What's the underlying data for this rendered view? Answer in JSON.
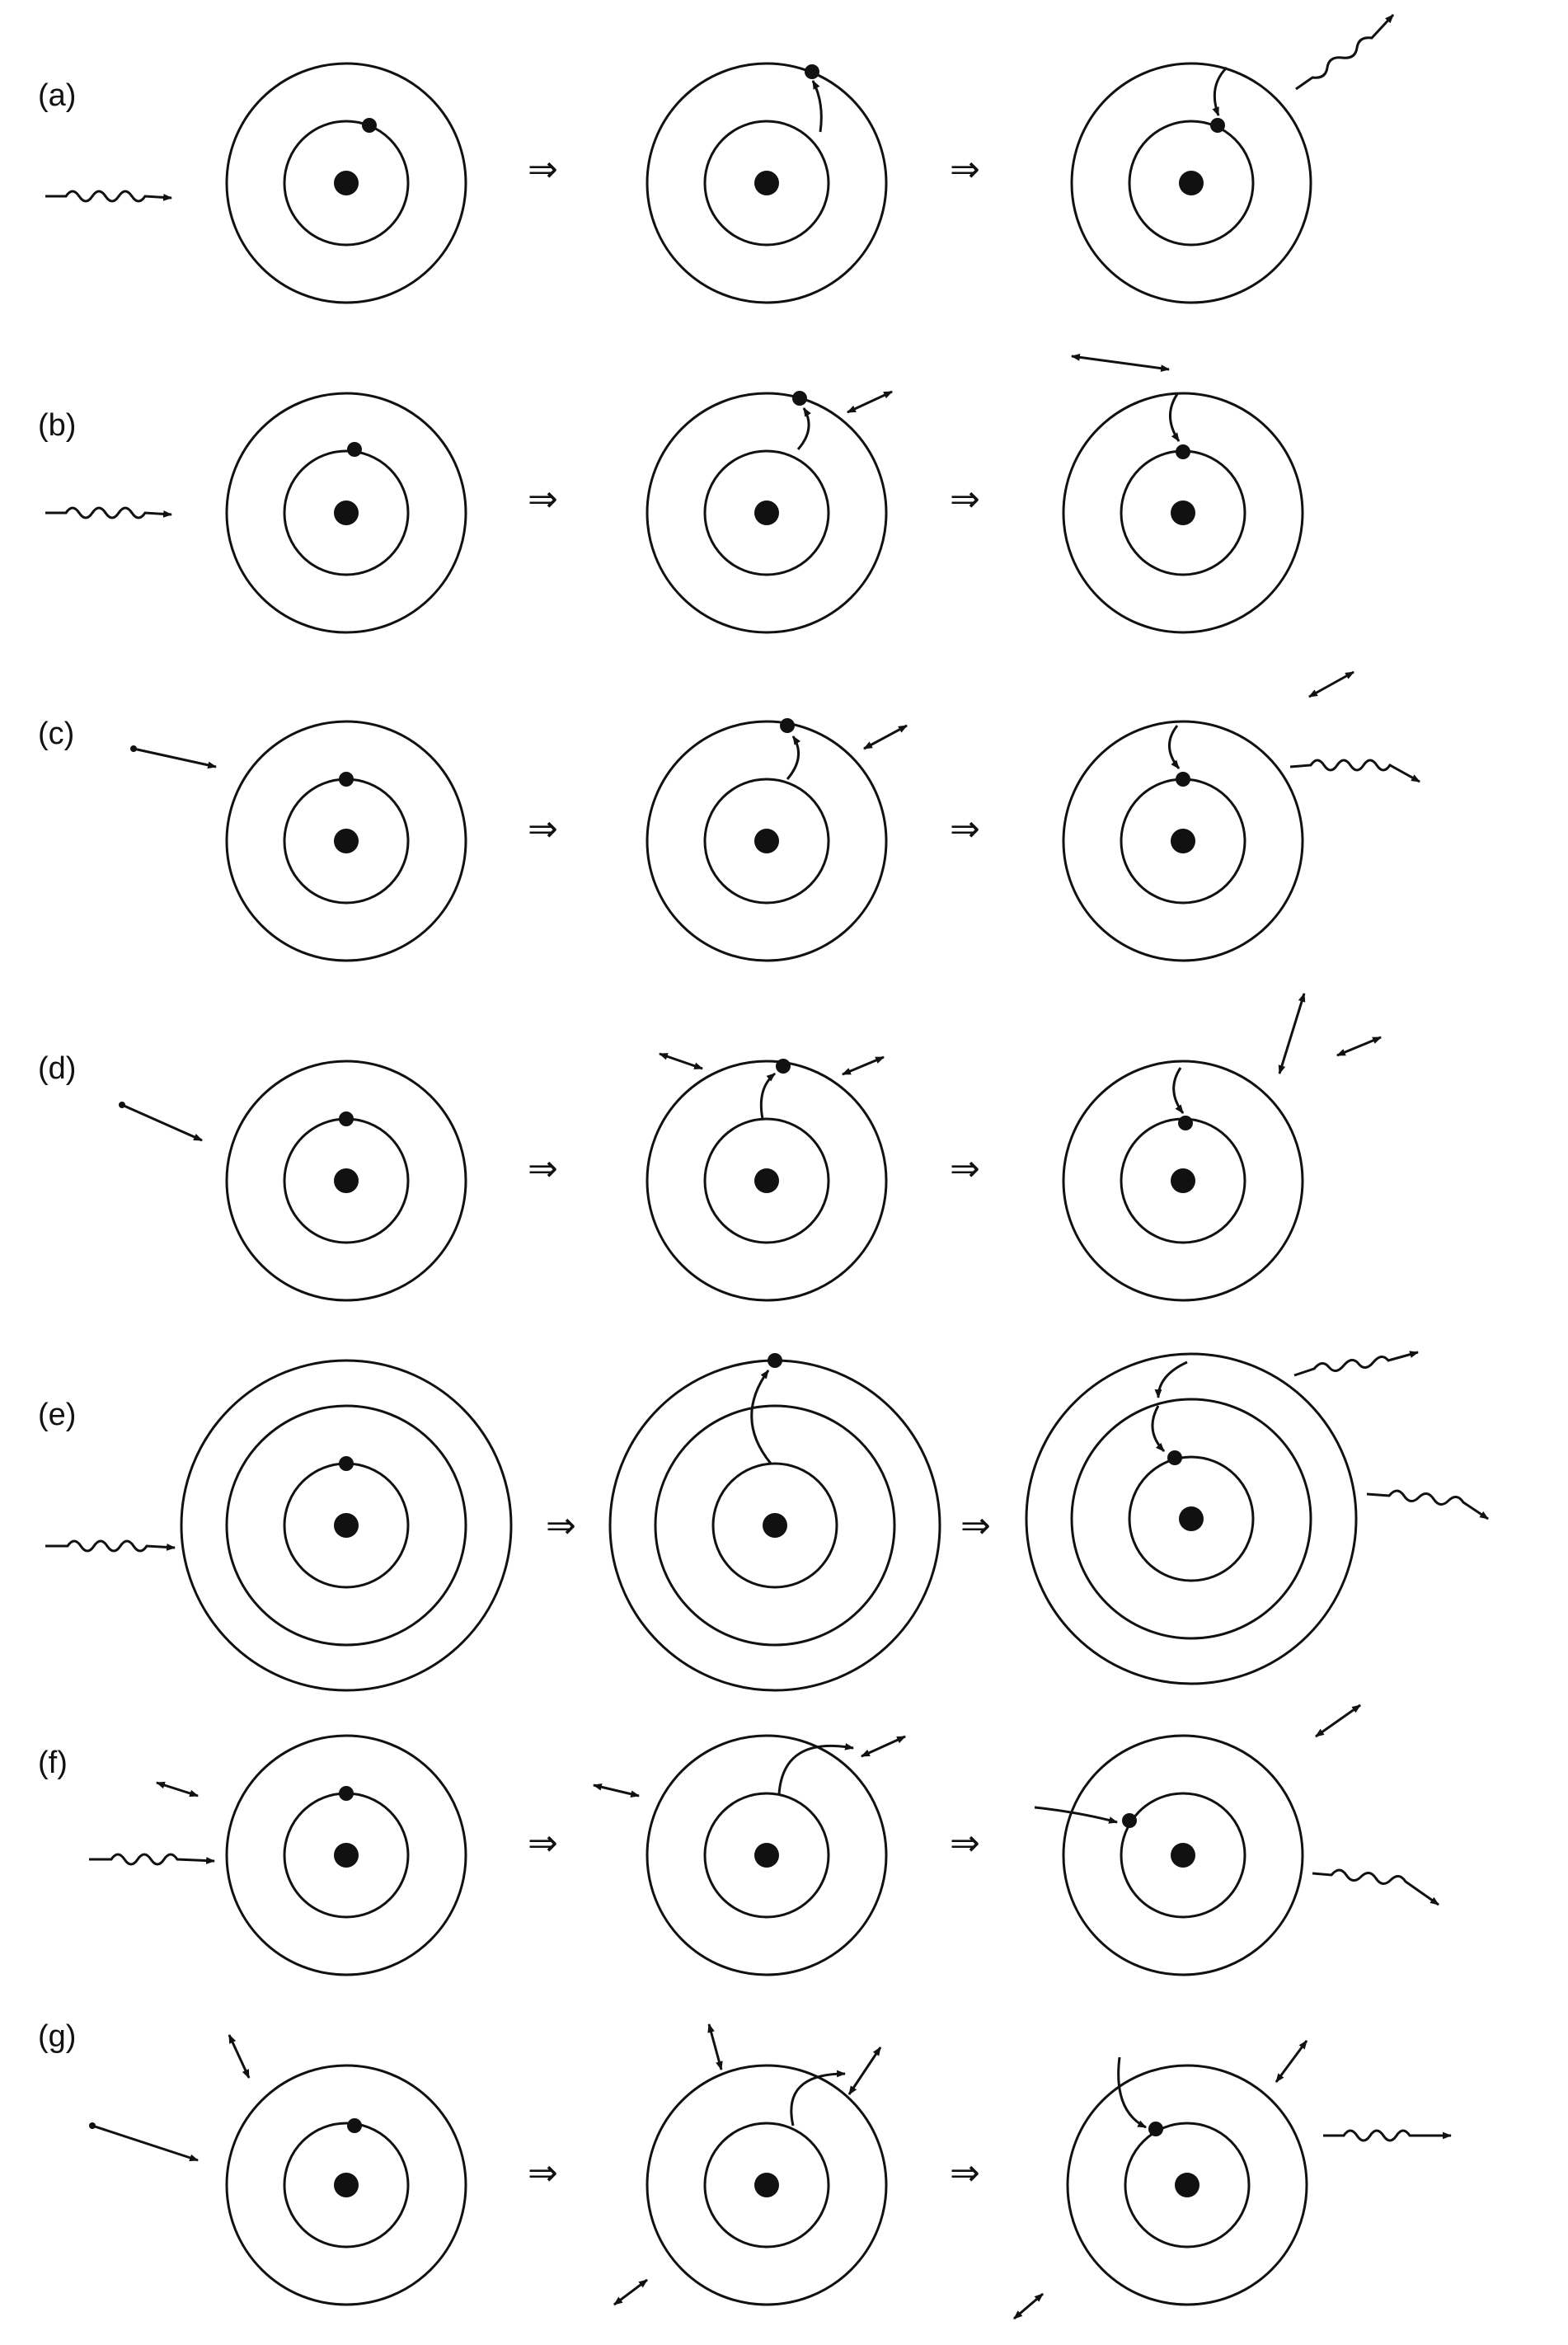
{
  "colors": {
    "ink": "#111111",
    "background": "#ffffff"
  },
  "transition_symbol": "⇒",
  "rows": [
    {
      "label": "(a)"
    },
    {
      "label": "(b)"
    },
    {
      "label": "(c)"
    },
    {
      "label": "(d)"
    },
    {
      "label": "(e)"
    },
    {
      "label": "(f)"
    },
    {
      "label": "(g)"
    }
  ]
}
